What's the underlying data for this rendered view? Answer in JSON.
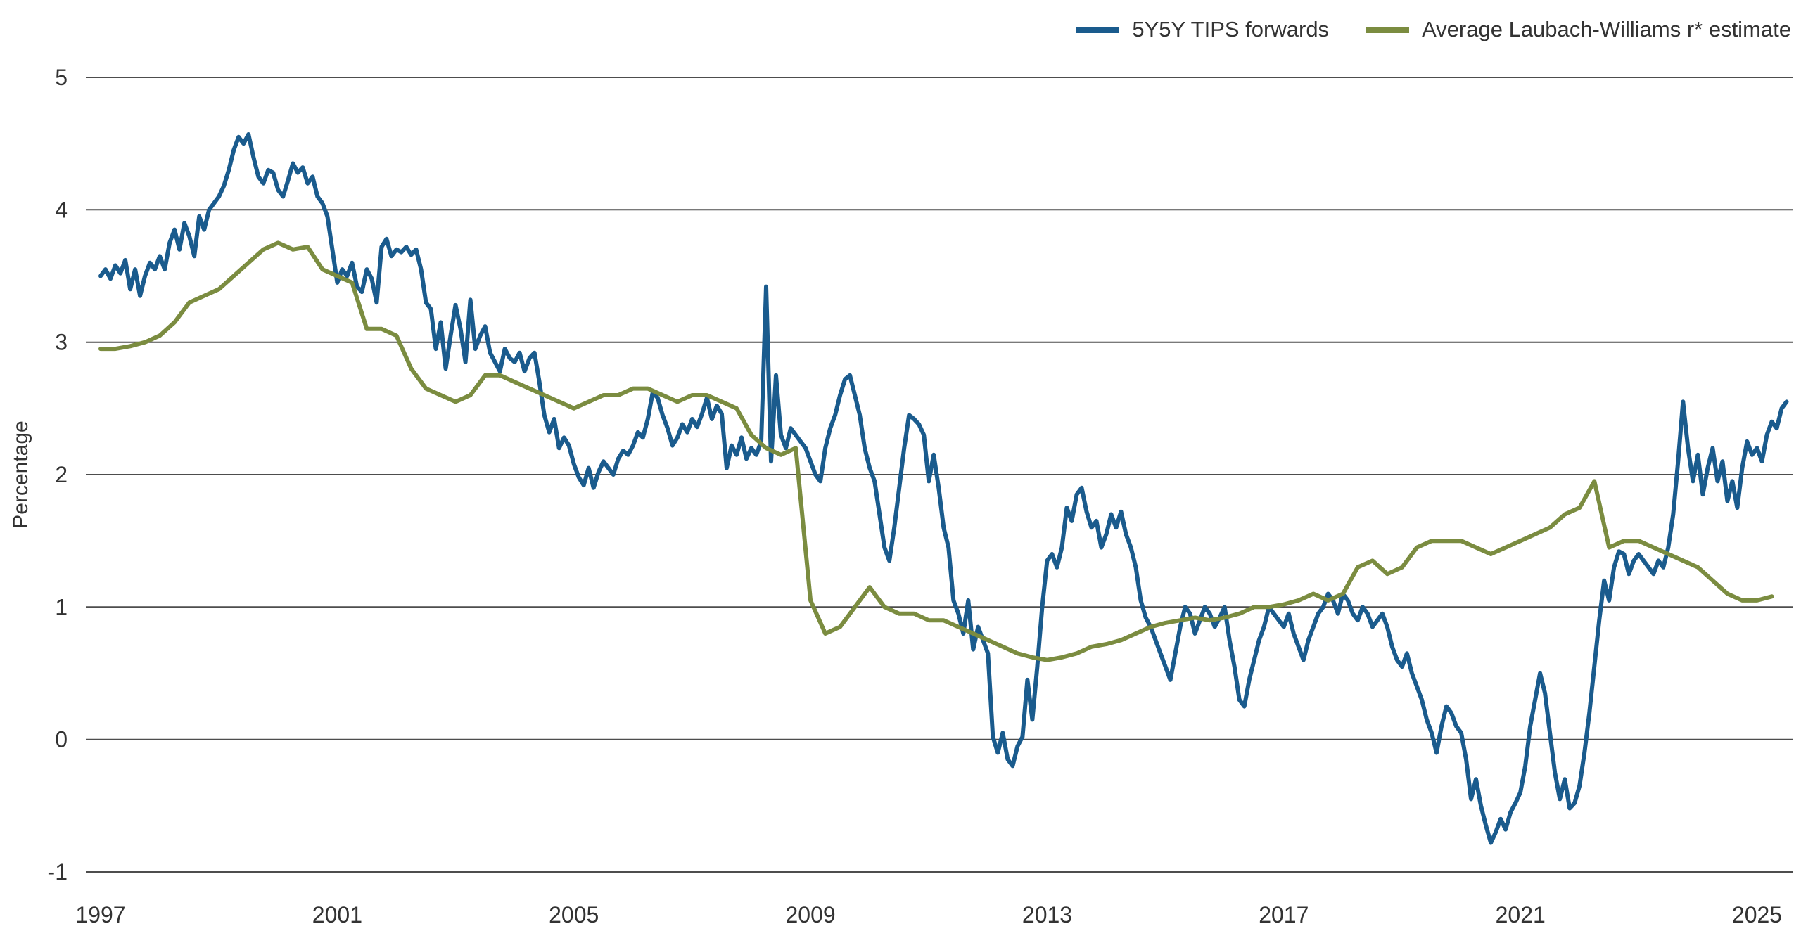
{
  "page": {
    "background_color": "#FFFFFF"
  },
  "chart_data": {
    "type": "line",
    "title": "",
    "xlabel": "",
    "ylabel": "Percentage",
    "ylim": [
      -1,
      5
    ],
    "yticks": [
      5,
      4,
      3,
      2,
      1,
      0,
      -1
    ],
    "xticks": [
      1997,
      2001,
      2005,
      2009,
      2013,
      2017,
      2021,
      2025
    ],
    "xlim": [
      1997,
      2025.5
    ],
    "grid": "horizontal",
    "grid_color": "#4D4D4D",
    "text_color": "#333333",
    "legend_position": "top-right",
    "series": [
      {
        "name": "5Y5Y TIPS forwards",
        "color": "#1A5B8D",
        "frequency": "monthly",
        "x_start": 1997.0,
        "x_step": 0.08333,
        "values": [
          3.5,
          3.55,
          3.48,
          3.58,
          3.52,
          3.62,
          3.4,
          3.55,
          3.35,
          3.5,
          3.6,
          3.55,
          3.65,
          3.55,
          3.75,
          3.85,
          3.7,
          3.9,
          3.8,
          3.65,
          3.95,
          3.85,
          4.0,
          4.05,
          4.1,
          4.18,
          4.3,
          4.45,
          4.55,
          4.5,
          4.57,
          4.4,
          4.25,
          4.2,
          4.3,
          4.28,
          4.15,
          4.1,
          4.22,
          4.35,
          4.28,
          4.32,
          4.2,
          4.25,
          4.1,
          4.05,
          3.95,
          3.7,
          3.45,
          3.55,
          3.5,
          3.6,
          3.42,
          3.38,
          3.55,
          3.48,
          3.3,
          3.72,
          3.78,
          3.65,
          3.7,
          3.68,
          3.72,
          3.66,
          3.7,
          3.55,
          3.3,
          3.25,
          2.95,
          3.15,
          2.8,
          3.05,
          3.28,
          3.1,
          2.85,
          3.32,
          2.95,
          3.05,
          3.12,
          2.92,
          2.85,
          2.78,
          2.95,
          2.88,
          2.85,
          2.92,
          2.78,
          2.88,
          2.92,
          2.7,
          2.45,
          2.32,
          2.42,
          2.2,
          2.28,
          2.22,
          2.08,
          1.98,
          1.92,
          2.05,
          1.9,
          2.02,
          2.1,
          2.05,
          2.0,
          2.12,
          2.18,
          2.15,
          2.22,
          2.32,
          2.28,
          2.42,
          2.62,
          2.58,
          2.45,
          2.35,
          2.22,
          2.28,
          2.38,
          2.32,
          2.42,
          2.36,
          2.46,
          2.58,
          2.42,
          2.52,
          2.46,
          2.05,
          2.22,
          2.15,
          2.28,
          2.12,
          2.2,
          2.15,
          2.25,
          3.42,
          2.1,
          2.75,
          2.3,
          2.2,
          2.35,
          2.3,
          2.25,
          2.2,
          2.1,
          2.0,
          1.95,
          2.2,
          2.35,
          2.45,
          2.6,
          2.72,
          2.75,
          2.6,
          2.45,
          2.2,
          2.05,
          1.95,
          1.7,
          1.45,
          1.35,
          1.6,
          1.9,
          2.2,
          2.45,
          2.42,
          2.38,
          2.3,
          1.95,
          2.15,
          1.9,
          1.6,
          1.45,
          1.05,
          0.95,
          0.8,
          1.05,
          0.68,
          0.85,
          0.75,
          0.65,
          0.02,
          -0.1,
          0.05,
          -0.15,
          -0.2,
          -0.05,
          0.02,
          0.45,
          0.15,
          0.55,
          1.0,
          1.35,
          1.4,
          1.3,
          1.45,
          1.75,
          1.65,
          1.85,
          1.9,
          1.72,
          1.6,
          1.65,
          1.45,
          1.55,
          1.7,
          1.6,
          1.72,
          1.55,
          1.45,
          1.3,
          1.05,
          0.92,
          0.85,
          0.75,
          0.65,
          0.55,
          0.45,
          0.65,
          0.85,
          1.0,
          0.95,
          0.8,
          0.9,
          1.0,
          0.95,
          0.85,
          0.92,
          1.0,
          0.75,
          0.55,
          0.3,
          0.25,
          0.45,
          0.6,
          0.75,
          0.85,
          1.0,
          0.95,
          0.9,
          0.85,
          0.95,
          0.8,
          0.7,
          0.6,
          0.75,
          0.85,
          0.95,
          1.0,
          1.1,
          1.05,
          0.95,
          1.1,
          1.05,
          0.95,
          0.9,
          1.0,
          0.95,
          0.85,
          0.9,
          0.95,
          0.85,
          0.7,
          0.6,
          0.55,
          0.65,
          0.5,
          0.4,
          0.3,
          0.15,
          0.05,
          -0.1,
          0.1,
          0.25,
          0.2,
          0.1,
          0.05,
          -0.15,
          -0.45,
          -0.3,
          -0.5,
          -0.65,
          -0.78,
          -0.7,
          -0.6,
          -0.68,
          -0.55,
          -0.48,
          -0.4,
          -0.2,
          0.1,
          0.3,
          0.5,
          0.35,
          0.05,
          -0.25,
          -0.45,
          -0.3,
          -0.52,
          -0.48,
          -0.35,
          -0.1,
          0.2,
          0.55,
          0.9,
          1.2,
          1.05,
          1.3,
          1.42,
          1.4,
          1.25,
          1.35,
          1.4,
          1.35,
          1.3,
          1.25,
          1.35,
          1.3,
          1.45,
          1.7,
          2.1,
          2.55,
          2.2,
          1.95,
          2.15,
          1.85,
          2.05,
          2.2,
          1.95,
          2.1,
          1.8,
          1.95,
          1.75,
          2.05,
          2.25,
          2.15,
          2.2,
          2.1,
          2.3,
          2.4,
          2.35,
          2.5,
          2.55
        ]
      },
      {
        "name": "Average Laubach-Williams r* estimate",
        "color": "#7B8C40",
        "frequency": "quarterly",
        "x_start": 1997.0,
        "x_step": 0.25,
        "values": [
          2.95,
          2.95,
          2.97,
          3.0,
          3.05,
          3.15,
          3.3,
          3.35,
          3.4,
          3.5,
          3.6,
          3.7,
          3.75,
          3.7,
          3.72,
          3.55,
          3.5,
          3.45,
          3.1,
          3.1,
          3.05,
          2.8,
          2.65,
          2.6,
          2.55,
          2.6,
          2.75,
          2.75,
          2.7,
          2.65,
          2.6,
          2.55,
          2.5,
          2.55,
          2.6,
          2.6,
          2.65,
          2.65,
          2.6,
          2.55,
          2.6,
          2.6,
          2.55,
          2.5,
          2.3,
          2.2,
          2.15,
          2.2,
          1.05,
          0.8,
          0.85,
          1.0,
          1.15,
          1.0,
          0.95,
          0.95,
          0.9,
          0.9,
          0.85,
          0.8,
          0.75,
          0.7,
          0.65,
          0.62,
          0.6,
          0.62,
          0.65,
          0.7,
          0.72,
          0.75,
          0.8,
          0.85,
          0.88,
          0.9,
          0.92,
          0.9,
          0.92,
          0.95,
          1.0,
          1.0,
          1.02,
          1.05,
          1.1,
          1.05,
          1.1,
          1.3,
          1.35,
          1.25,
          1.3,
          1.45,
          1.5,
          1.5,
          1.5,
          1.45,
          1.4,
          1.45,
          1.5,
          1.55,
          1.6,
          1.7,
          1.75,
          1.95,
          1.45,
          1.5,
          1.5,
          1.45,
          1.4,
          1.35,
          1.3,
          1.2,
          1.1,
          1.05,
          1.05,
          1.08
        ]
      }
    ]
  }
}
